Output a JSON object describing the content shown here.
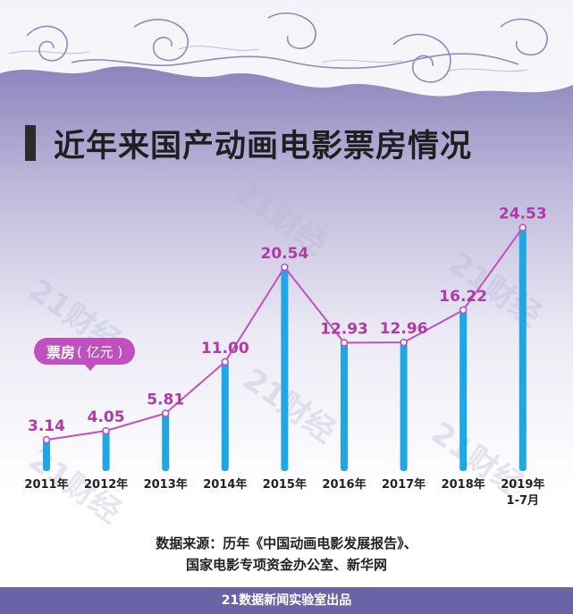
{
  "page": {
    "title": "近年来国产动画电影票房情况",
    "badge_label": "票房",
    "badge_unit": "( 亿元 )",
    "source_line1": "数据来源：历年《中国动画电影发展报告》、",
    "source_line2": "国家电影专项资金办公室、新华网",
    "footer": "21数据新闻实验室出品"
  },
  "colors": {
    "bar": "#1ea7e4",
    "line": "#c04fc0",
    "label": "#b03aa8",
    "header_bg": "#7f77b6",
    "footer_bg": "#6a63a6"
  },
  "chart_data": {
    "type": "bar",
    "title": "近年来国产动画电影票房情况",
    "ylabel": "票房 ( 亿元 )",
    "categories": [
      "2011年",
      "2012年",
      "2013年",
      "2014年",
      "2015年",
      "2016年",
      "2017年",
      "2018年",
      "2019年 1-7月"
    ],
    "tick_labels": [
      [
        "2011年"
      ],
      [
        "2012年"
      ],
      [
        "2013年"
      ],
      [
        "2014年"
      ],
      [
        "2015年"
      ],
      [
        "2016年"
      ],
      [
        "2017年"
      ],
      [
        "2018年"
      ],
      [
        "2019年",
        "1-7月"
      ]
    ],
    "values": [
      3.14,
      4.05,
      5.81,
      11.0,
      20.54,
      12.93,
      12.96,
      16.22,
      24.53
    ],
    "value_labels": [
      "3.14",
      "4.05",
      "5.81",
      "11.00",
      "20.54",
      "12.93",
      "12.96",
      "16.22",
      "24.53"
    ],
    "overlay": "line through bar tops with circle markers",
    "ylim": [
      0,
      27
    ],
    "grid": false,
    "legend": "none"
  }
}
